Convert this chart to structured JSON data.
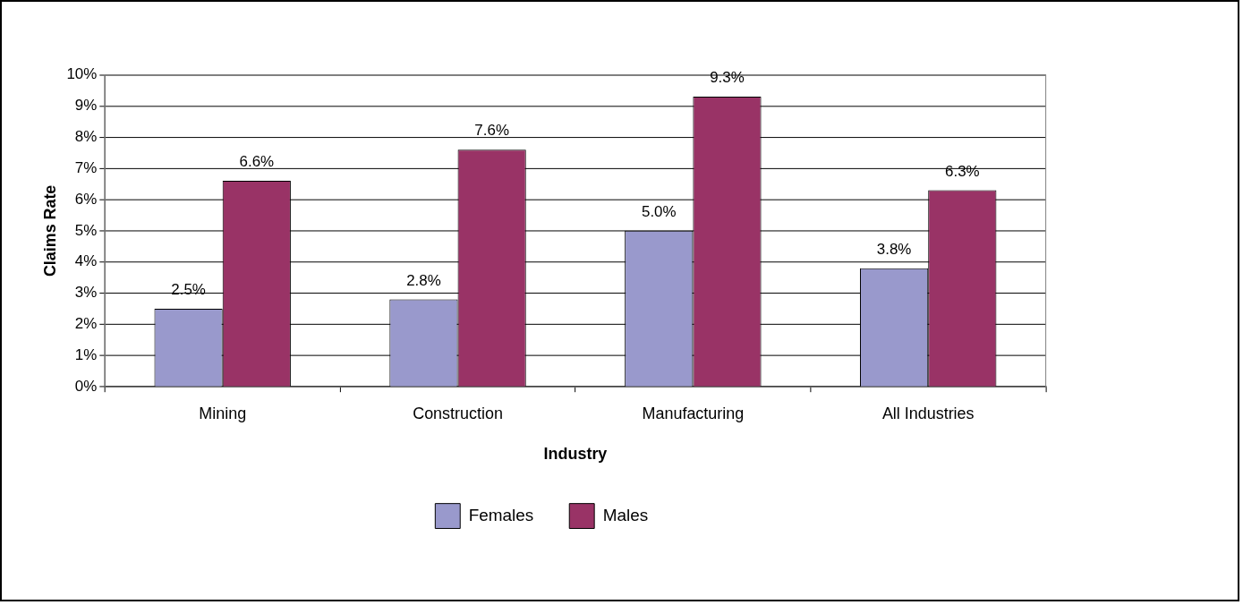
{
  "chart_data": {
    "type": "bar",
    "xlabel": "Industry",
    "ylabel": "Claims Rate",
    "categories": [
      "Mining",
      "Construction",
      "Manufacturing",
      "All Industries"
    ],
    "series": [
      {
        "name": "Females",
        "color": "#9999cc",
        "values": [
          2.5,
          2.8,
          5.0,
          3.8
        ],
        "value_labels": [
          "2.5%",
          "2.8%",
          "5.0%",
          "3.8%"
        ]
      },
      {
        "name": "Males",
        "color": "#993366",
        "values": [
          6.6,
          7.6,
          9.3,
          6.3
        ],
        "value_labels": [
          "6.6%",
          "7.6%",
          "9.3%",
          "6.3%"
        ]
      }
    ],
    "ylim": [
      0,
      10
    ],
    "yticks": [
      {
        "value": 0,
        "label": "0%"
      },
      {
        "value": 1,
        "label": "1%"
      },
      {
        "value": 2,
        "label": "2%"
      },
      {
        "value": 3,
        "label": "3%"
      },
      {
        "value": 4,
        "label": "4%"
      },
      {
        "value": 5,
        "label": "5%"
      },
      {
        "value": 6,
        "label": "6%"
      },
      {
        "value": 7,
        "label": "7%"
      },
      {
        "value": 8,
        "label": "8%"
      },
      {
        "value": 9,
        "label": "9%"
      },
      {
        "value": 10,
        "label": "10%"
      }
    ],
    "grid": "y",
    "legend": "bottom"
  }
}
